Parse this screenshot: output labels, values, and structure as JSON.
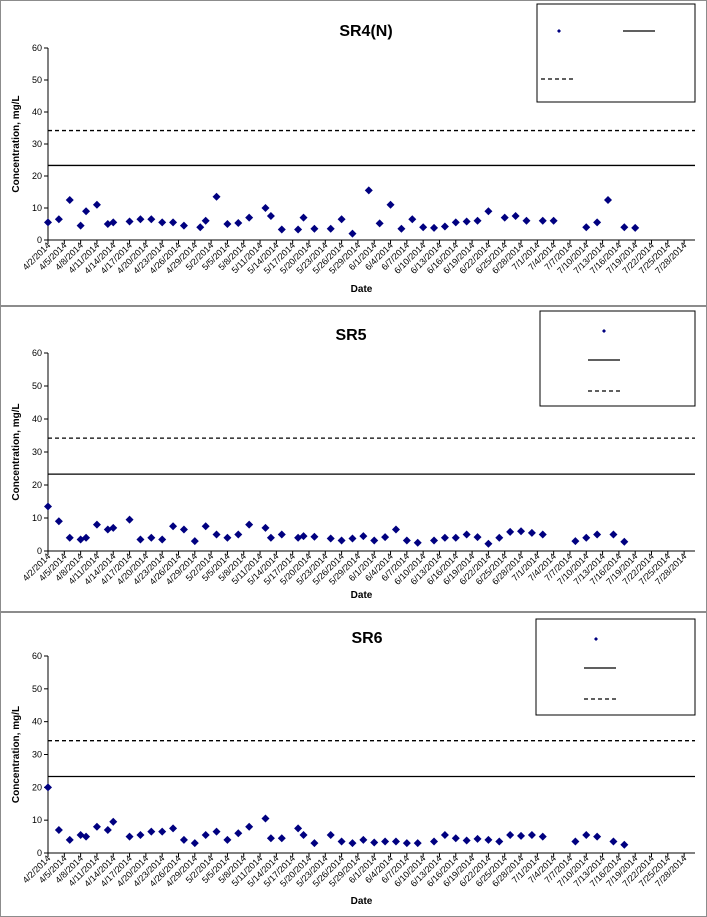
{
  "chart_data": [
    {
      "type": "scatter",
      "title": "SR4(N)",
      "xlabel": "Date",
      "ylabel": "Concentration, mg/L",
      "ylim": [
        0,
        60
      ],
      "yticks": [
        0,
        10,
        20,
        30,
        40,
        50,
        60
      ],
      "x_tick_labels": [
        "4/2/2014",
        "4/5/2014",
        "4/8/2014",
        "4/11/2014",
        "4/14/2014",
        "4/17/2014",
        "4/20/2014",
        "4/23/2014",
        "4/26/2014",
        "4/29/2014",
        "5/2/2014",
        "5/5/2014",
        "5/8/2014",
        "5/11/2014",
        "5/14/2014",
        "5/17/2014",
        "5/20/2014",
        "5/23/2014",
        "5/26/2014",
        "5/29/2014",
        "6/1/2014",
        "6/4/2014",
        "6/7/2014",
        "6/10/2014",
        "6/13/2014",
        "6/16/2014",
        "6/19/2014",
        "6/22/2014",
        "6/25/2014",
        "6/28/2014",
        "7/1/2014",
        "7/4/2014",
        "7/7/2014",
        "7/10/2014",
        "7/13/2014",
        "7/16/2014",
        "7/19/2014",
        "7/22/2014",
        "7/25/2014",
        "7/28/2014"
      ],
      "x_day_range": [
        0,
        119
      ],
      "reference_lines": [
        {
          "style": "solid",
          "value": 23.3
        },
        {
          "style": "dashed",
          "value": 34.2
        }
      ],
      "legend_position": "top-right",
      "series_color": "#000080",
      "points": [
        [
          0,
          5.5
        ],
        [
          2,
          6.5
        ],
        [
          4,
          12.5
        ],
        [
          6,
          4.5
        ],
        [
          7,
          9
        ],
        [
          9,
          11
        ],
        [
          11,
          5
        ],
        [
          12,
          5.5
        ],
        [
          15,
          5.8
        ],
        [
          17,
          6.5
        ],
        [
          19,
          6.5
        ],
        [
          21,
          5.5
        ],
        [
          23,
          5.5
        ],
        [
          25,
          4.5
        ],
        [
          28,
          4
        ],
        [
          29,
          6
        ],
        [
          31,
          13.5
        ],
        [
          33,
          5
        ],
        [
          35,
          5.3
        ],
        [
          37,
          7
        ],
        [
          40,
          10
        ],
        [
          41,
          7.5
        ],
        [
          43,
          3.3
        ],
        [
          46,
          3.3
        ],
        [
          47,
          7
        ],
        [
          49,
          3.5
        ],
        [
          52,
          3.5
        ],
        [
          54,
          6.5
        ],
        [
          56,
          2
        ],
        [
          59,
          15.5
        ],
        [
          61,
          5.2
        ],
        [
          63,
          11
        ],
        [
          65,
          3.5
        ],
        [
          67,
          6.5
        ],
        [
          69,
          4
        ],
        [
          71,
          3.8
        ],
        [
          73,
          4.2
        ],
        [
          75,
          5.5
        ],
        [
          77,
          5.8
        ],
        [
          79,
          6
        ],
        [
          81,
          9
        ],
        [
          84,
          7
        ],
        [
          86,
          7.5
        ],
        [
          88,
          6
        ],
        [
          91,
          6
        ],
        [
          93,
          6
        ],
        [
          99,
          4
        ],
        [
          101,
          5.5
        ],
        [
          103,
          12.5
        ],
        [
          106,
          4
        ],
        [
          108,
          3.8
        ]
      ]
    },
    {
      "type": "scatter",
      "title": "SR5",
      "xlabel": "Date",
      "ylabel": "Concentration, mg/L",
      "ylim": [
        0,
        60
      ],
      "yticks": [
        0,
        10,
        20,
        30,
        40,
        50,
        60
      ],
      "x_tick_labels": [
        "4/2/2014",
        "4/5/2014",
        "4/8/2014",
        "4/11/2014",
        "4/14/2014",
        "4/17/2014",
        "4/20/2014",
        "4/23/2014",
        "4/26/2014",
        "4/29/2014",
        "5/2/2014",
        "5/5/2014",
        "5/8/2014",
        "5/11/2014",
        "5/14/2014",
        "5/17/2014",
        "5/20/2014",
        "5/23/2014",
        "5/26/2014",
        "5/29/2014",
        "6/1/2014",
        "6/4/2014",
        "6/7/2014",
        "6/10/2014",
        "6/13/2014",
        "6/16/2014",
        "6/19/2014",
        "6/22/2014",
        "6/25/2014",
        "6/28/2014",
        "7/1/2014",
        "7/4/2014",
        "7/7/2014",
        "7/10/2014",
        "7/13/2014",
        "7/16/2014",
        "7/19/2014",
        "7/22/2014",
        "7/25/2014",
        "7/28/2014"
      ],
      "x_day_range": [
        0,
        119
      ],
      "reference_lines": [
        {
          "style": "solid",
          "value": 23.3
        },
        {
          "style": "dashed",
          "value": 34.2
        }
      ],
      "legend_position": "top-right",
      "series_color": "#000080",
      "points": [
        [
          0,
          13.5
        ],
        [
          2,
          9
        ],
        [
          4,
          4
        ],
        [
          6,
          3.5
        ],
        [
          7,
          4
        ],
        [
          9,
          8
        ],
        [
          11,
          6.5
        ],
        [
          12,
          7
        ],
        [
          15,
          9.5
        ],
        [
          17,
          3.5
        ],
        [
          19,
          4
        ],
        [
          21,
          3.5
        ],
        [
          23,
          7.5
        ],
        [
          25,
          6.5
        ],
        [
          27,
          3
        ],
        [
          29,
          7.5
        ],
        [
          31,
          5
        ],
        [
          33,
          4
        ],
        [
          35,
          5
        ],
        [
          37,
          8
        ],
        [
          40,
          7
        ],
        [
          41,
          4
        ],
        [
          43,
          5
        ],
        [
          46,
          4
        ],
        [
          47,
          4.5
        ],
        [
          49,
          4.3
        ],
        [
          52,
          3.8
        ],
        [
          54,
          3.2
        ],
        [
          56,
          3.8
        ],
        [
          58,
          4.5
        ],
        [
          60,
          3.2
        ],
        [
          62,
          4.2
        ],
        [
          64,
          6.5
        ],
        [
          66,
          3.2
        ],
        [
          68,
          2.5
        ],
        [
          71,
          3.2
        ],
        [
          73,
          4
        ],
        [
          75,
          4
        ],
        [
          77,
          5
        ],
        [
          79,
          4.2
        ],
        [
          81,
          2.2
        ],
        [
          83,
          4
        ],
        [
          85,
          5.8
        ],
        [
          87,
          6
        ],
        [
          89,
          5.5
        ],
        [
          91,
          5
        ],
        [
          97,
          3
        ],
        [
          99,
          4
        ],
        [
          101,
          5
        ],
        [
          104,
          5
        ],
        [
          106,
          2.8
        ]
      ]
    },
    {
      "type": "scatter",
      "title": "SR6",
      "xlabel": "Date",
      "ylabel": "Concentration, mg/L",
      "ylim": [
        0,
        60
      ],
      "yticks": [
        0,
        10,
        20,
        30,
        40,
        50,
        60
      ],
      "x_tick_labels": [
        "4/2/2014",
        "4/5/2014",
        "4/8/2014",
        "4/11/2014",
        "4/14/2014",
        "4/17/2014",
        "4/20/2014",
        "4/23/2014",
        "4/26/2014",
        "4/29/2014",
        "5/2/2014",
        "5/5/2014",
        "5/8/2014",
        "5/11/2014",
        "5/14/2014",
        "5/17/2014",
        "5/20/2014",
        "5/23/2014",
        "5/26/2014",
        "5/29/2014",
        "6/1/2014",
        "6/4/2014",
        "6/7/2014",
        "6/10/2014",
        "6/13/2014",
        "6/16/2014",
        "6/19/2014",
        "6/22/2014",
        "6/25/2014",
        "6/28/2014",
        "7/1/2014",
        "7/4/2014",
        "7/7/2014",
        "7/10/2014",
        "7/13/2014",
        "7/16/2014",
        "7/19/2014",
        "7/22/2014",
        "7/25/2014",
        "7/28/2014"
      ],
      "x_day_range": [
        0,
        119
      ],
      "reference_lines": [
        {
          "style": "solid",
          "value": 23.3
        },
        {
          "style": "dashed",
          "value": 34.2
        }
      ],
      "legend_position": "top-right",
      "series_color": "#000080",
      "points": [
        [
          0,
          20
        ],
        [
          2,
          7
        ],
        [
          4,
          4
        ],
        [
          6,
          5.5
        ],
        [
          7,
          5
        ],
        [
          9,
          8
        ],
        [
          11,
          7
        ],
        [
          12,
          9.5
        ],
        [
          15,
          5
        ],
        [
          17,
          5.5
        ],
        [
          19,
          6.5
        ],
        [
          21,
          6.5
        ],
        [
          23,
          7.5
        ],
        [
          25,
          4
        ],
        [
          27,
          3
        ],
        [
          29,
          5.5
        ],
        [
          31,
          6.5
        ],
        [
          33,
          4
        ],
        [
          35,
          6
        ],
        [
          37,
          8
        ],
        [
          40,
          10.5
        ],
        [
          41,
          4.5
        ],
        [
          43,
          4.5
        ],
        [
          46,
          7.5
        ],
        [
          47,
          5.5
        ],
        [
          49,
          3
        ],
        [
          52,
          5.5
        ],
        [
          54,
          3.5
        ],
        [
          56,
          3
        ],
        [
          58,
          4
        ],
        [
          60,
          3.2
        ],
        [
          62,
          3.5
        ],
        [
          64,
          3.5
        ],
        [
          66,
          3
        ],
        [
          68,
          3
        ],
        [
          71,
          3.5
        ],
        [
          73,
          5.5
        ],
        [
          75,
          4.5
        ],
        [
          77,
          3.8
        ],
        [
          79,
          4.3
        ],
        [
          81,
          4
        ],
        [
          83,
          3.5
        ],
        [
          85,
          5.5
        ],
        [
          87,
          5.2
        ],
        [
          89,
          5.5
        ],
        [
          91,
          5
        ],
        [
          97,
          3.5
        ],
        [
          99,
          5.5
        ],
        [
          101,
          5
        ],
        [
          104,
          3.5
        ],
        [
          106,
          2.5
        ]
      ]
    }
  ]
}
